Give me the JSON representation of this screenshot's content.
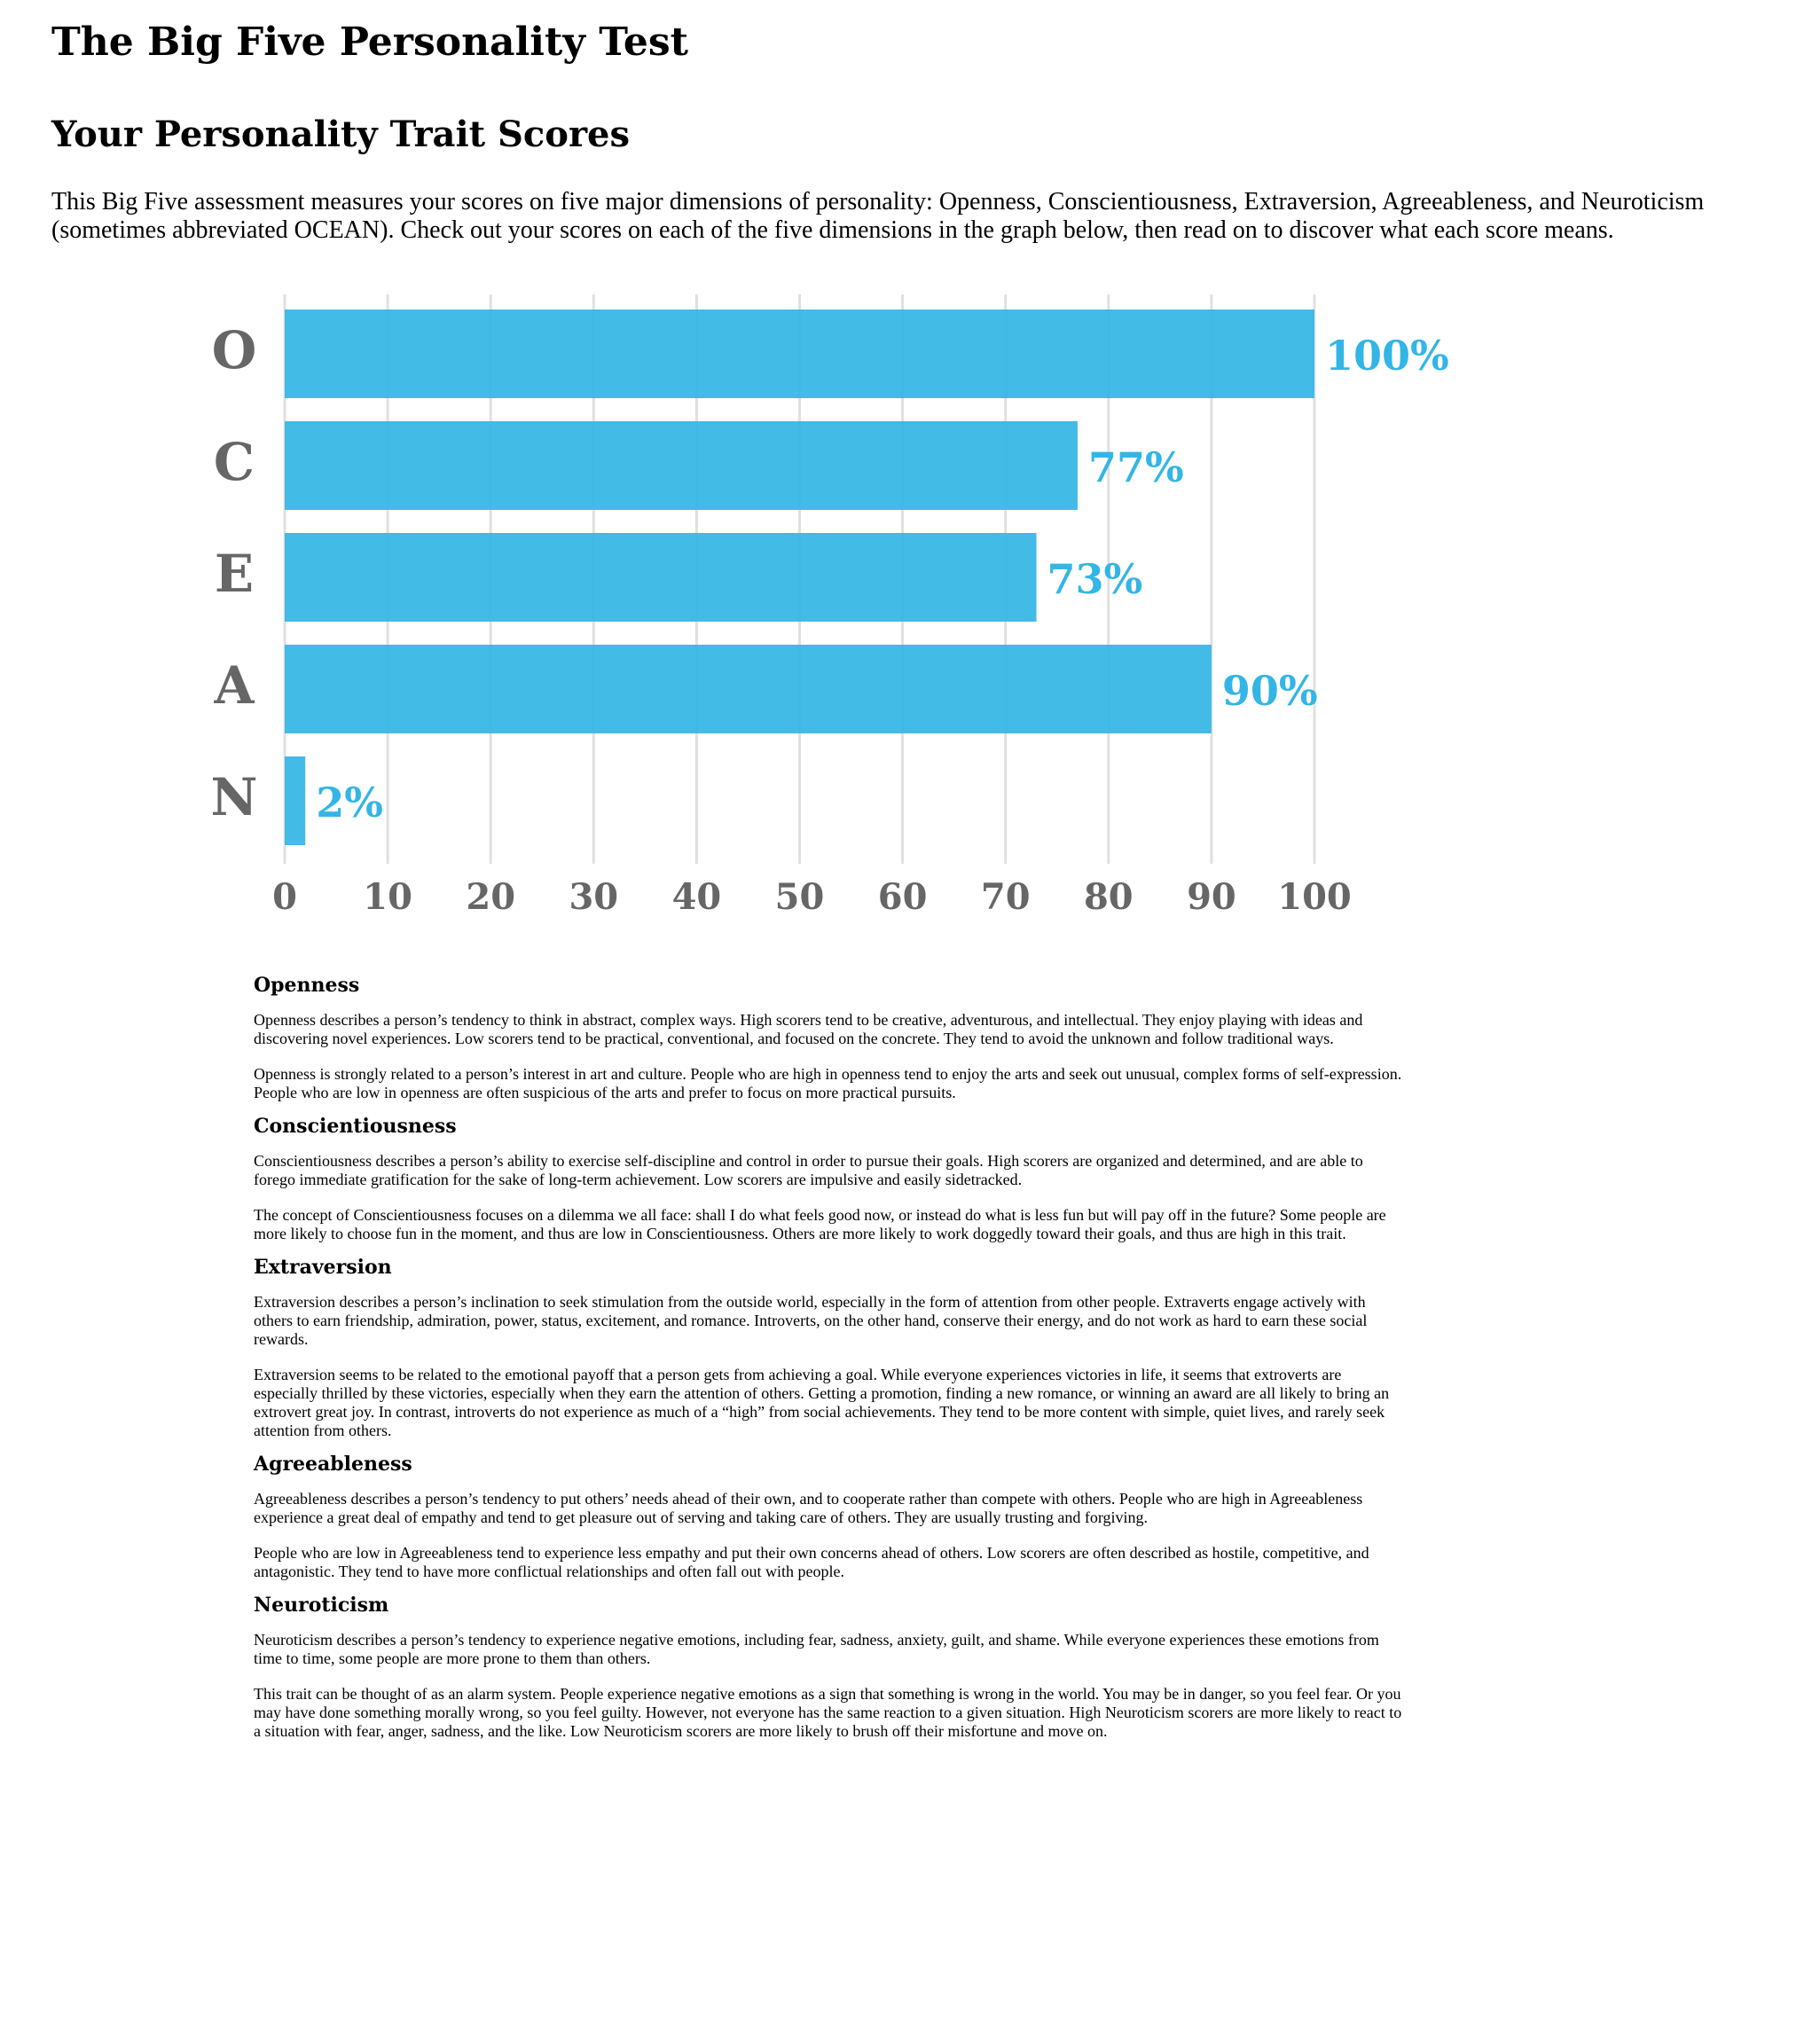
{
  "page": {
    "title": "The Big Five Personality Test",
    "subtitle": "Your Personality Trait Scores",
    "intro": "This Big Five assessment measures your scores on five major dimensions of personality: Openness, Conscientiousness, Extraversion, Agreeableness, and Neuroticism (sometimes abbreviated OCEAN). Check out your scores on each of the five dimensions in the graph below, then read on to discover what each score means."
  },
  "colors": {
    "bar": "#33b5e5",
    "label": "#666666",
    "value": "#33b5e5",
    "grid": "#e0e0e0"
  },
  "chart_data": {
    "type": "bar",
    "orientation": "horizontal",
    "categories": [
      "O",
      "C",
      "E",
      "A",
      "N"
    ],
    "values": [
      100,
      77,
      73,
      90,
      2
    ],
    "value_labels": [
      "100%",
      "77%",
      "73%",
      "90%",
      "2%"
    ],
    "xlim": [
      0,
      100
    ],
    "xticks": [
      0,
      10,
      20,
      30,
      40,
      50,
      60,
      70,
      80,
      90,
      100
    ],
    "grid": true,
    "legend": "none"
  },
  "traits": [
    {
      "name": "Openness",
      "paragraphs": [
        "Openness describes a person’s tendency to think in abstract, complex ways. High scorers tend to be creative, adventurous, and intellectual. They enjoy playing with ideas and discovering novel experiences. Low scorers tend to be practical, conventional, and focused on the concrete. They tend to avoid the unknown and follow traditional ways.",
        "Openness is strongly related to a person’s interest in art and culture. People who are high in openness tend to enjoy the arts and seek out unusual, complex forms of self-expression. People who are low in openness are often suspicious of the arts and prefer to focus on more practical pursuits."
      ]
    },
    {
      "name": "Conscientiousness",
      "paragraphs": [
        "Conscientiousness describes a person’s ability to exercise self-discipline and control in order to pursue their goals. High scorers are organized and determined, and are able to forego immediate gratification for the sake of long-term achievement. Low scorers are impulsive and easily sidetracked.",
        "The concept of Conscientiousness focuses on a dilemma we all face: shall I do what feels good now, or instead do what is less fun but will pay off in the future? Some people are more likely to choose fun in the moment, and thus are low in Conscientiousness. Others are more likely to work doggedly toward their goals, and thus are high in this trait."
      ]
    },
    {
      "name": "Extraversion",
      "paragraphs": [
        "Extraversion describes a person’s inclination to seek stimulation from the outside world, especially in the form of attention from other people. Extraverts engage actively with others to earn friendship, admiration, power, status, excitement, and romance. Introverts, on the other hand, conserve their energy, and do not work as hard to earn these social rewards.",
        "Extraversion seems to be related to the emotional payoff that a person gets from achieving a goal. While everyone experiences victories in life, it seems that extroverts are especially thrilled by these victories, especially when they earn the attention of others. Getting a promotion, finding a new romance, or winning an award are all likely to bring an extrovert great joy. In contrast, introverts do not experience as much of a “high” from social achievements. They tend to be more content with simple, quiet lives, and rarely seek attention from others."
      ]
    },
    {
      "name": "Agreeableness",
      "paragraphs": [
        "Agreeableness describes a person’s tendency to put others’ needs ahead of their own, and to cooperate rather than compete with others. People who are high in Agreeableness experience a great deal of empathy and tend to get pleasure out of serving and taking care of others. They are usually trusting and forgiving.",
        "People who are low in Agreeableness tend to experience less empathy and put their own concerns ahead of others. Low scorers are often described as hostile, competitive, and antagonistic. They tend to have more conflictual relationships and often fall out with people."
      ]
    },
    {
      "name": "Neuroticism",
      "paragraphs": [
        "Neuroticism describes a person’s tendency to experience negative emotions, including fear, sadness, anxiety, guilt, and shame. While everyone experiences these emotions from time to time, some people are more prone to them than others.",
        "This trait can be thought of as an alarm system. People experience negative emotions as a sign that something is wrong in the world. You may be in danger, so you feel fear. Or you may have done something morally wrong, so you feel guilty. However, not everyone has the same reaction to a given situation. High Neuroticism scorers are more likely to react to a situation with fear, anger, sadness, and the like. Low Neuroticism scorers are more likely to brush off their misfortune and move on."
      ]
    }
  ]
}
